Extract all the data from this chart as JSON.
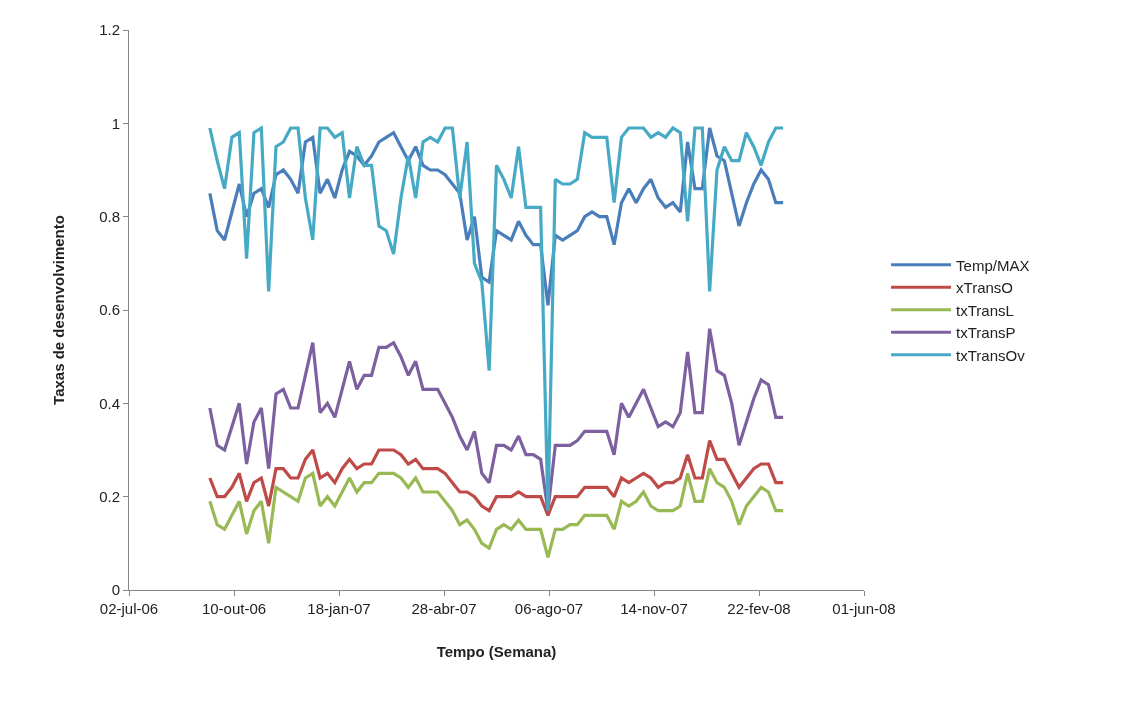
{
  "chart_data": {
    "type": "line",
    "xlabel": "Tempo (Semana)",
    "ylabel": "Taxas de desenvolvimento",
    "x": [
      "2006-09-17",
      "2006-09-24",
      "2006-10-01",
      "2006-10-08",
      "2006-10-15",
      "2006-10-22",
      "2006-10-29",
      "2006-11-05",
      "2006-11-12",
      "2006-11-19",
      "2006-11-26",
      "2006-12-03",
      "2006-12-10",
      "2006-12-17",
      "2006-12-24",
      "2006-12-31",
      "2007-01-07",
      "2007-01-14",
      "2007-01-21",
      "2007-01-28",
      "2007-02-04",
      "2007-02-11",
      "2007-02-18",
      "2007-02-25",
      "2007-03-04",
      "2007-03-11",
      "2007-03-18",
      "2007-03-25",
      "2007-04-01",
      "2007-04-08",
      "2007-04-15",
      "2007-04-22",
      "2007-04-29",
      "2007-05-06",
      "2007-05-13",
      "2007-05-20",
      "2007-05-27",
      "2007-06-03",
      "2007-06-10",
      "2007-06-17",
      "2007-06-24",
      "2007-07-01",
      "2007-07-08",
      "2007-07-15",
      "2007-07-22",
      "2007-07-29",
      "2007-08-05",
      "2007-08-12",
      "2007-08-19",
      "2007-08-26",
      "2007-09-02",
      "2007-09-09",
      "2007-09-16",
      "2007-09-23",
      "2007-09-30",
      "2007-10-07",
      "2007-10-14",
      "2007-10-21",
      "2007-10-28",
      "2007-11-04",
      "2007-11-11",
      "2007-11-18",
      "2007-11-25",
      "2007-12-02",
      "2007-12-09",
      "2007-12-16",
      "2007-12-23",
      "2007-12-30",
      "2008-01-06",
      "2008-01-13",
      "2008-01-20",
      "2008-01-27",
      "2008-02-03",
      "2008-02-10",
      "2008-02-17",
      "2008-02-24",
      "2008-03-02",
      "2008-03-09",
      "2008-03-16"
    ],
    "series": [
      {
        "name": "Temp/MAX",
        "color": "#4a7ebb",
        "values": [
          0.85,
          0.77,
          0.75,
          0.81,
          0.87,
          0.8,
          0.85,
          0.86,
          0.82,
          0.89,
          0.9,
          0.88,
          0.85,
          0.96,
          0.97,
          0.85,
          0.88,
          0.84,
          0.9,
          0.94,
          0.93,
          0.91,
          0.93,
          0.96,
          0.97,
          0.98,
          0.95,
          0.92,
          0.95,
          0.91,
          0.9,
          0.9,
          0.89,
          0.87,
          0.85,
          0.75,
          0.8,
          0.67,
          0.66,
          0.77,
          0.76,
          0.75,
          0.79,
          0.76,
          0.74,
          0.74,
          0.61,
          0.76,
          0.75,
          0.76,
          0.77,
          0.8,
          0.81,
          0.8,
          0.8,
          0.74,
          0.83,
          0.86,
          0.83,
          0.86,
          0.88,
          0.84,
          0.82,
          0.83,
          0.81,
          0.96,
          0.86,
          0.86,
          0.99,
          0.93,
          0.92,
          0.85,
          0.78,
          0.83,
          0.87,
          0.9,
          0.88,
          0.83,
          0.83
        ]
      },
      {
        "name": "xTransO",
        "color": "#be4b48",
        "values": [
          0.24,
          0.2,
          0.2,
          0.22,
          0.25,
          0.19,
          0.23,
          0.24,
          0.18,
          0.26,
          0.26,
          0.24,
          0.24,
          0.28,
          0.3,
          0.24,
          0.25,
          0.23,
          0.26,
          0.28,
          0.26,
          0.27,
          0.27,
          0.3,
          0.3,
          0.3,
          0.29,
          0.27,
          0.28,
          0.26,
          0.26,
          0.26,
          0.25,
          0.23,
          0.21,
          0.21,
          0.2,
          0.18,
          0.17,
          0.2,
          0.2,
          0.2,
          0.21,
          0.2,
          0.2,
          0.2,
          0.16,
          0.2,
          0.2,
          0.2,
          0.2,
          0.22,
          0.22,
          0.22,
          0.22,
          0.2,
          0.24,
          0.23,
          0.24,
          0.25,
          0.24,
          0.22,
          0.23,
          0.23,
          0.24,
          0.29,
          0.24,
          0.24,
          0.32,
          0.28,
          0.28,
          0.25,
          0.22,
          0.24,
          0.26,
          0.27,
          0.27,
          0.23,
          0.23
        ]
      },
      {
        "name": "txTransL",
        "color": "#98b954",
        "values": [
          0.19,
          0.14,
          0.13,
          0.16,
          0.19,
          0.12,
          0.17,
          0.19,
          0.1,
          0.22,
          0.21,
          0.2,
          0.19,
          0.24,
          0.25,
          0.18,
          0.2,
          0.18,
          0.21,
          0.24,
          0.21,
          0.23,
          0.23,
          0.25,
          0.25,
          0.25,
          0.24,
          0.22,
          0.24,
          0.21,
          0.21,
          0.21,
          0.19,
          0.17,
          0.14,
          0.15,
          0.13,
          0.1,
          0.09,
          0.13,
          0.14,
          0.13,
          0.15,
          0.13,
          0.13,
          0.13,
          0.07,
          0.13,
          0.13,
          0.14,
          0.14,
          0.16,
          0.16,
          0.16,
          0.16,
          0.13,
          0.19,
          0.18,
          0.19,
          0.21,
          0.18,
          0.17,
          0.17,
          0.17,
          0.18,
          0.25,
          0.19,
          0.19,
          0.26,
          0.23,
          0.22,
          0.19,
          0.14,
          0.18,
          0.2,
          0.22,
          0.21,
          0.17,
          0.17
        ]
      },
      {
        "name": "txTransP",
        "color": "#7d60a0",
        "values": [
          0.39,
          0.31,
          0.3,
          0.35,
          0.4,
          0.27,
          0.36,
          0.39,
          0.26,
          0.42,
          0.43,
          0.39,
          0.39,
          0.46,
          0.53,
          0.38,
          0.4,
          0.37,
          0.43,
          0.49,
          0.43,
          0.46,
          0.46,
          0.52,
          0.52,
          0.53,
          0.5,
          0.46,
          0.49,
          0.43,
          0.43,
          0.43,
          0.4,
          0.37,
          0.33,
          0.3,
          0.34,
          0.25,
          0.23,
          0.31,
          0.31,
          0.3,
          0.33,
          0.29,
          0.29,
          0.28,
          0.17,
          0.31,
          0.31,
          0.31,
          0.32,
          0.34,
          0.34,
          0.34,
          0.34,
          0.29,
          0.4,
          0.37,
          0.4,
          0.43,
          0.39,
          0.35,
          0.36,
          0.35,
          0.38,
          0.51,
          0.38,
          0.38,
          0.56,
          0.47,
          0.46,
          0.4,
          0.31,
          0.36,
          0.41,
          0.45,
          0.44,
          0.37,
          0.37
        ]
      },
      {
        "name": "txTransOv",
        "color": "#46aac5",
        "values": [
          0.99,
          0.92,
          0.86,
          0.97,
          0.98,
          0.71,
          0.98,
          0.99,
          0.64,
          0.95,
          0.96,
          0.99,
          0.99,
          0.84,
          0.75,
          0.99,
          0.99,
          0.97,
          0.98,
          0.84,
          0.95,
          0.91,
          0.91,
          0.78,
          0.77,
          0.72,
          0.84,
          0.93,
          0.84,
          0.96,
          0.97,
          0.96,
          0.99,
          0.99,
          0.84,
          0.96,
          0.7,
          0.66,
          0.47,
          0.91,
          0.88,
          0.84,
          0.95,
          0.82,
          0.82,
          0.82,
          0.17,
          0.88,
          0.87,
          0.87,
          0.88,
          0.98,
          0.97,
          0.97,
          0.97,
          0.83,
          0.97,
          0.99,
          0.99,
          0.99,
          0.97,
          0.98,
          0.97,
          0.99,
          0.98,
          0.79,
          0.99,
          0.99,
          0.64,
          0.9,
          0.95,
          0.92,
          0.92,
          0.98,
          0.95,
          0.91,
          0.96,
          0.99,
          0.99
        ]
      }
    ],
    "xlim": [
      "2006-07-02",
      "2008-06-01"
    ],
    "xticks": [
      {
        "value": "2006-07-02",
        "label": "02-jul-06"
      },
      {
        "value": "2006-10-10",
        "label": "10-out-06"
      },
      {
        "value": "2007-01-18",
        "label": "18-jan-07"
      },
      {
        "value": "2007-04-28",
        "label": "28-abr-07"
      },
      {
        "value": "2007-08-06",
        "label": "06-ago-07"
      },
      {
        "value": "2007-11-14",
        "label": "14-nov-07"
      },
      {
        "value": "2008-02-22",
        "label": "22-fev-08"
      },
      {
        "value": "2008-06-01",
        "label": "01-jun-08"
      }
    ],
    "ylim": [
      0,
      1.2
    ],
    "yticks": [
      0,
      0.2,
      0.4,
      0.6,
      0.8,
      1,
      1.2
    ],
    "legend": "right",
    "marker": "none",
    "line_style": "solid"
  }
}
